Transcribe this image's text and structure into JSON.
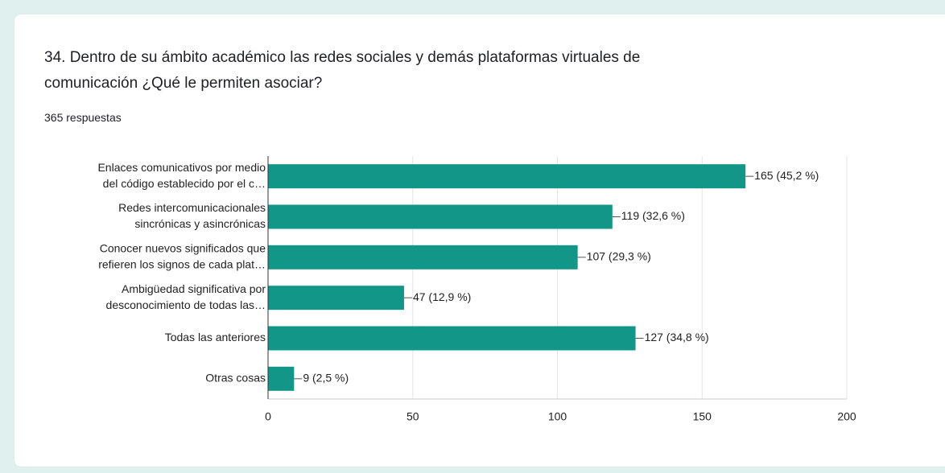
{
  "chart_data": {
    "type": "bar",
    "orientation": "horizontal",
    "title": [
      "34. Dentro de su ámbito académico las redes sociales y demás plataformas virtuales de",
      "comunicación ¿Qué le permiten asociar?"
    ],
    "subtitle": "365 respuestas",
    "categories": [
      [
        "Enlaces comunicativos por medio",
        "del código establecido por el c…"
      ],
      [
        "Redes intercomunicacionales",
        "sincrónicas y asincrónicas"
      ],
      [
        "Conocer nuevos significados que",
        "refieren los signos de cada plat…"
      ],
      [
        "Ambigüedad significativa por",
        "desconocimiento de todas las…"
      ],
      [
        "Todas las anteriores"
      ],
      [
        "Otras cosas"
      ]
    ],
    "values": [
      165,
      119,
      107,
      47,
      127,
      9
    ],
    "value_labels": [
      "165 (45,2 %)",
      "119 (32,6 %)",
      "107 (29,3 %)",
      "47 (12,9 %)",
      "127 (34,8 %)",
      "9 (2,5 %)"
    ],
    "color": "#129688",
    "xlim": [
      0,
      200
    ],
    "xticks": [
      0,
      50,
      100,
      150,
      200
    ],
    "grid": true
  }
}
